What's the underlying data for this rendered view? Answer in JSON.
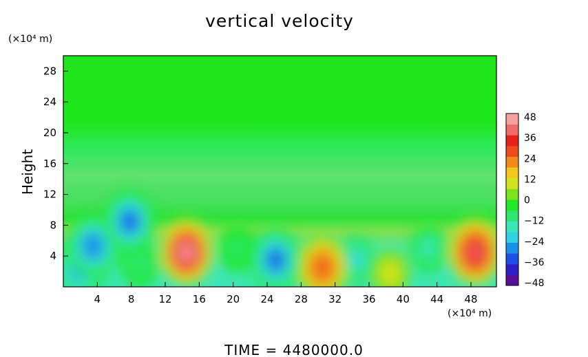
{
  "chart_data": {
    "type": "heatmap",
    "title": "vertical velocity",
    "ylabel": "Height",
    "y_unit_label": "(×10⁴ m)",
    "x_unit_label": "(×10⁴ m)",
    "footer": "TIME  =  4480000.0",
    "xlim": [
      0,
      51
    ],
    "ylim": [
      0,
      30
    ],
    "x_ticks": [
      "4",
      "8",
      "12",
      "16",
      "20",
      "24",
      "28",
      "32",
      "36",
      "40",
      "44",
      "48"
    ],
    "y_ticks": [
      "4",
      "8",
      "12",
      "16",
      "20",
      "24",
      "28"
    ],
    "colorbar": {
      "range": [
        -48,
        48
      ],
      "tick_labels": [
        "48",
        "36",
        "24",
        "12",
        "0",
        "−12",
        "−24",
        "−36",
        "−48"
      ],
      "colors": [
        "#5a0f9a",
        "#2e1fc8",
        "#1f4fe6",
        "#1c8fe8",
        "#2ed2e4",
        "#3ce6b4",
        "#2ee66e",
        "#22e82a",
        "#7ee21e",
        "#d2e21e",
        "#f2c81c",
        "#f28a1c",
        "#ee4a1c",
        "#e8201c",
        "#f06a6a",
        "#f6a0a0"
      ]
    },
    "features": [
      {
        "x": 14.5,
        "y": 4.5,
        "value": 45
      },
      {
        "x": 48.5,
        "y": 4.5,
        "value": 36
      },
      {
        "x": 30.5,
        "y": 2.5,
        "value": 28
      },
      {
        "x": 25,
        "y": 3.5,
        "value": -36
      },
      {
        "x": 7.8,
        "y": 8.5,
        "value": -33
      },
      {
        "x": 3.5,
        "y": 5.3,
        "value": -30
      },
      {
        "x": 1.8,
        "y": 2.2,
        "value": -27
      },
      {
        "x": 34.5,
        "y": 3.5,
        "value": -21
      },
      {
        "x": 38.5,
        "y": 1.7,
        "value": 9
      },
      {
        "x": 43,
        "y": 5,
        "value": -15
      },
      {
        "x": 20.5,
        "y": 5,
        "value": -8
      },
      {
        "x": 9,
        "y": 3,
        "value": -12
      }
    ]
  }
}
